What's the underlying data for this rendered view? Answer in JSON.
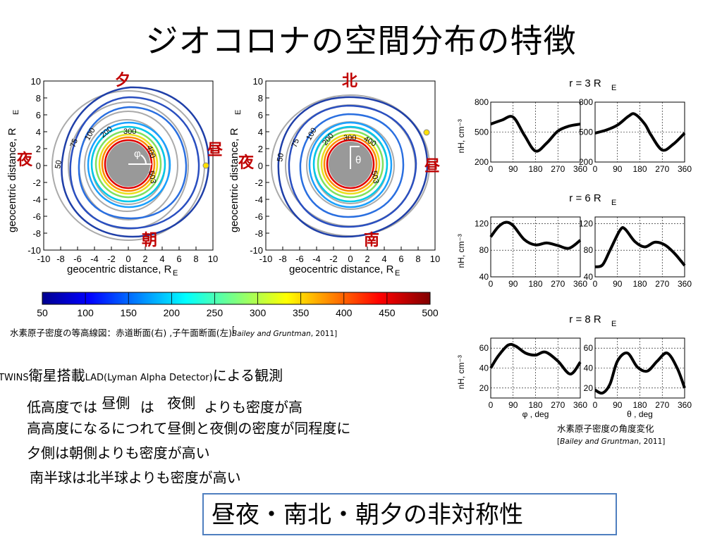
{
  "title": "ジオコロナの空間分布の特徴",
  "direction_labels": {
    "left": {
      "top": "夕",
      "bottom": "朝",
      "left": "夜",
      "right": "昼"
    },
    "right": {
      "top": "北",
      "bottom": "南",
      "left": "夜",
      "right": "昼"
    }
  },
  "contour_panels": {
    "xlabel": "geocentric distance, R",
    "ylabel": "geocentric distance, R",
    "subscript": "E",
    "left_angle": "φ",
    "right_angle": "θ",
    "contour_labels": [
      "50",
      "75",
      "100",
      "200",
      "300",
      "400",
      "503"
    ]
  },
  "colorbar": {
    "ticks": [
      "50",
      "100",
      "150",
      "200",
      "250",
      "300",
      "350",
      "400",
      "450",
      "500"
    ]
  },
  "caption_left": {
    "text": "水素原子密度の等高線図：赤道断面(右) ,子午面断面(左)",
    "cite_authors": "Bailey and Gruntman",
    "cite_year": ", 2011]"
  },
  "twins": {
    "prefix": "TWINS",
    "sat": "衛星搭載",
    "lad": "LAD(Lyman Alpha Detector)",
    "suffix": "による観測"
  },
  "findings": {
    "line1_a": "低高度では",
    "line1_b": "昼側",
    "line1_c": "は",
    "line1_d": "夜側",
    "line1_e": "よりも密度が高",
    "line2": "高高度になるにつれて昼側と夜側の密度が同程度に",
    "line3": "夕側は朝側よりも密度が高い",
    "line4": "南半球は北半球よりも密度が高い"
  },
  "summary": "昼夜・南北・朝夕の非対称性",
  "caption_right": {
    "text": "水素原子密度の角度変化",
    "cite_authors": "Bailey and Gruntman",
    "cite_year": ", 2011]"
  },
  "chart_data": [
    {
      "type": "line",
      "title": "r = 3 R_E",
      "panel": "phi",
      "x": [
        0,
        45,
        90,
        135,
        180,
        225,
        270,
        315,
        360
      ],
      "y": [
        580,
        620,
        650,
        470,
        310,
        390,
        510,
        560,
        580
      ],
      "xlim": [
        0,
        360
      ],
      "ylim": [
        200,
        800
      ],
      "xticks": [
        0,
        90,
        180,
        270,
        360
      ],
      "yticks": [
        200,
        500,
        800
      ],
      "ylabel": "n_H, cm^-3"
    },
    {
      "type": "line",
      "title": "r = 3 R_E",
      "panel": "theta",
      "x": [
        0,
        45,
        90,
        135,
        160,
        200,
        225,
        270,
        315,
        360
      ],
      "y": [
        490,
        520,
        570,
        660,
        680,
        580,
        470,
        320,
        380,
        490
      ],
      "xlim": [
        0,
        360
      ],
      "ylim": [
        200,
        800
      ],
      "xticks": [
        0,
        90,
        180,
        270,
        360
      ],
      "yticks": [
        200,
        500,
        800
      ]
    },
    {
      "type": "line",
      "title": "r = 6 R_E",
      "panel": "phi",
      "x": [
        0,
        30,
        60,
        90,
        135,
        180,
        225,
        270,
        315,
        360
      ],
      "y": [
        100,
        115,
        122,
        117,
        96,
        88,
        91,
        87,
        83,
        95
      ],
      "xlim": [
        0,
        360
      ],
      "ylim": [
        40,
        130
      ],
      "xticks": [
        0,
        90,
        180,
        270,
        360
      ],
      "yticks": [
        40,
        80,
        120
      ],
      "ylabel": "n_H, cm^-3"
    },
    {
      "type": "line",
      "title": "r = 6 R_E",
      "panel": "theta",
      "x": [
        0,
        30,
        60,
        100,
        120,
        160,
        200,
        240,
        280,
        320,
        360
      ],
      "y": [
        55,
        58,
        80,
        110,
        112,
        93,
        85,
        92,
        88,
        75,
        57
      ],
      "xlim": [
        0,
        360
      ],
      "ylim": [
        40,
        130
      ],
      "xticks": [
        0,
        90,
        180,
        270,
        360
      ],
      "yticks": [
        40,
        80,
        120
      ]
    },
    {
      "type": "line",
      "title": "r = 8 R_E",
      "panel": "phi",
      "x": [
        0,
        30,
        70,
        100,
        140,
        180,
        220,
        270,
        320,
        360
      ],
      "y": [
        40,
        52,
        63,
        62,
        55,
        53,
        56,
        47,
        34,
        46
      ],
      "xlim": [
        0,
        360
      ],
      "ylim": [
        10,
        70
      ],
      "xticks": [
        0,
        90,
        180,
        270,
        360
      ],
      "yticks": [
        20,
        40,
        60
      ],
      "xlabel": "φ , deg",
      "ylabel": "n_H, cm^-3"
    },
    {
      "type": "line",
      "title": "r = 8 R_E",
      "panel": "theta",
      "x": [
        0,
        30,
        60,
        90,
        130,
        170,
        210,
        250,
        290,
        330,
        360
      ],
      "y": [
        18,
        15,
        24,
        47,
        55,
        41,
        37,
        47,
        55,
        40,
        20
      ],
      "xlim": [
        0,
        360
      ],
      "ylim": [
        10,
        70
      ],
      "xticks": [
        0,
        90,
        180,
        270,
        360
      ],
      "yticks": [
        20,
        40,
        60
      ],
      "xlabel": "θ , deg"
    }
  ]
}
